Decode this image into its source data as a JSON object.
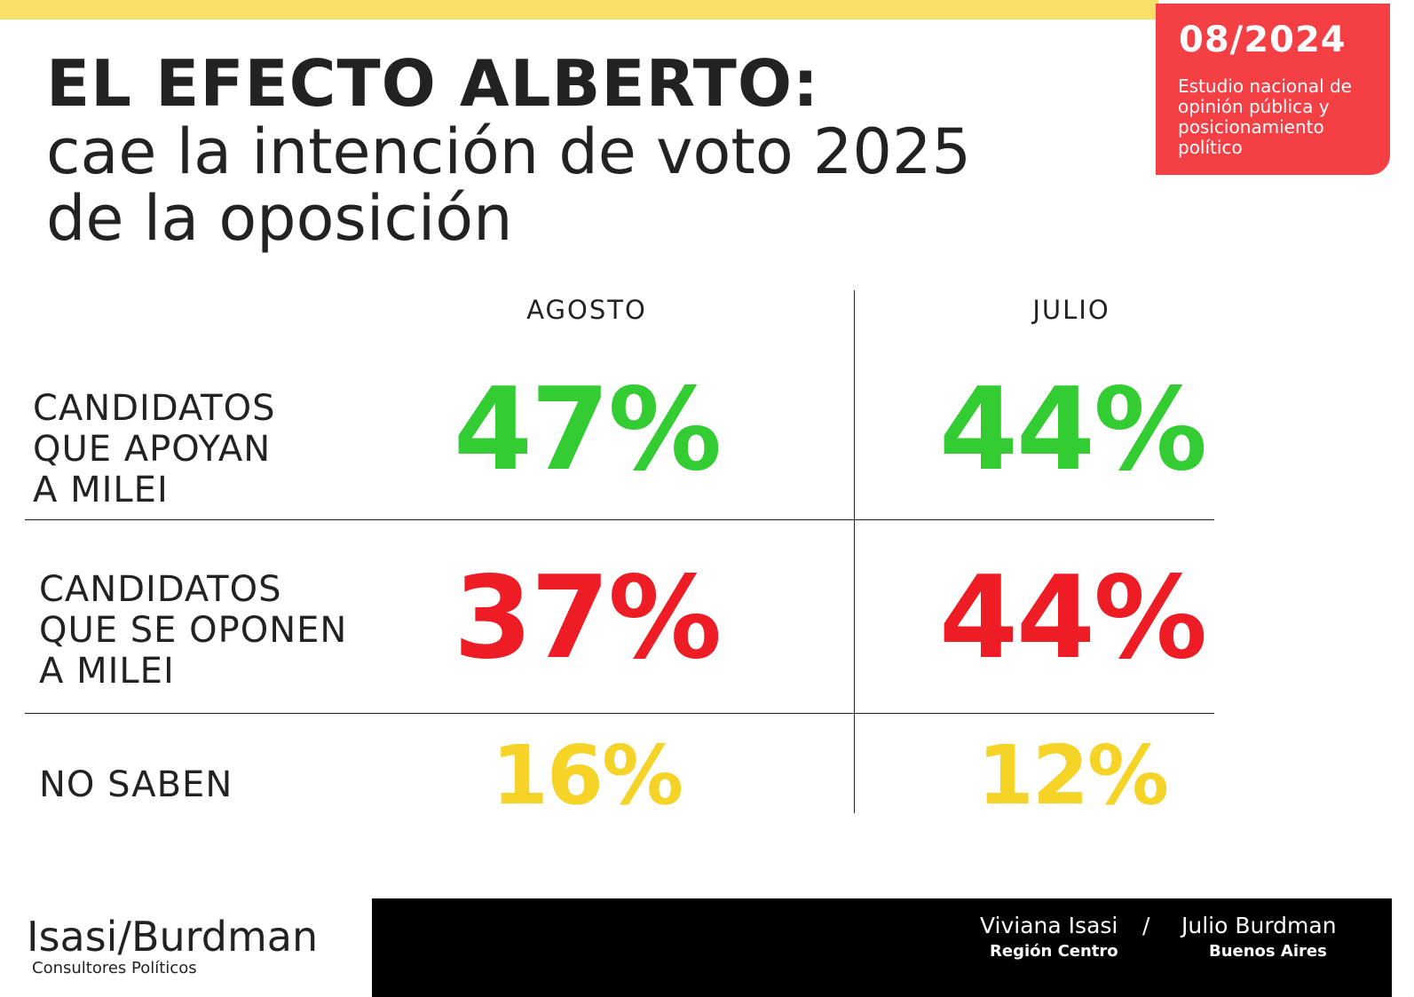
{
  "header": {
    "title": "EL EFECTO ALBERTO:",
    "subtitle_line1": "cae la intención de voto 2025",
    "subtitle_line2": "de la oposición"
  },
  "badge": {
    "date": "08/2024",
    "description": "Estudio nacional de opinión pública y posicionamiento político"
  },
  "colors": {
    "green": "#33cc33",
    "red": "#ee1c24",
    "yellow": "#f5d327",
    "badge": "#f43f45",
    "topbar": "#f7df6a"
  },
  "chart_data": {
    "type": "table",
    "columns": [
      "AGOSTO",
      "JULIO"
    ],
    "rows": [
      {
        "label_lines": [
          "CANDIDATOS",
          "QUE APOYAN",
          "A MILEI"
        ],
        "values": [
          "47%",
          "44%"
        ]
      },
      {
        "label_lines": [
          "CANDIDATOS",
          "QUE SE OPONEN",
          "A MILEI"
        ],
        "values": [
          "37%",
          "44%"
        ]
      },
      {
        "label_lines": [
          "NO SABEN"
        ],
        "values": [
          "16%",
          "12%"
        ]
      }
    ]
  },
  "footer": {
    "logo": "Isasi/Burdman",
    "logo_sub": "Consultores Políticos",
    "person1": "Viviana Isasi",
    "region1": "Región Centro",
    "separator": "/",
    "person2": "Julio Burdman",
    "region2": "Buenos Aires"
  }
}
